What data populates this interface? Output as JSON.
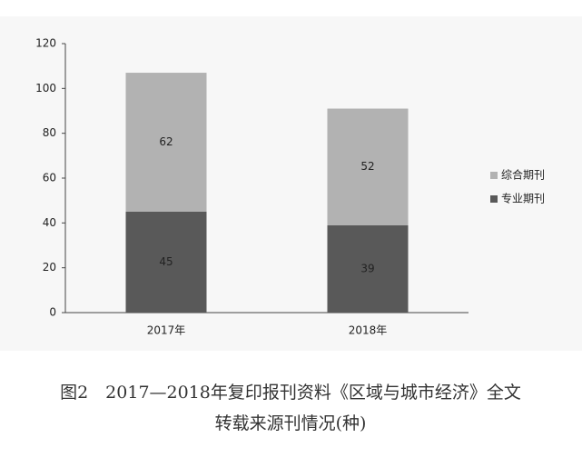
{
  "chart_data": {
    "type": "stacked_bar",
    "caption": [
      "图2　2017—2018年复印报刊资料《区域与城市经济》全文",
      "转载来源刊情况(种)"
    ],
    "categories": [
      "2017年",
      "2018年"
    ],
    "series": [
      {
        "name": "专业期刊",
        "color": "#595959",
        "values": [
          45,
          39
        ]
      },
      {
        "name": "综合期刊",
        "color": "#b2b2b2",
        "values": [
          62,
          52
        ]
      }
    ],
    "ylim": [
      0,
      120
    ],
    "yticks": [
      0,
      20,
      40,
      60,
      80,
      100,
      120
    ],
    "legend": "right"
  }
}
